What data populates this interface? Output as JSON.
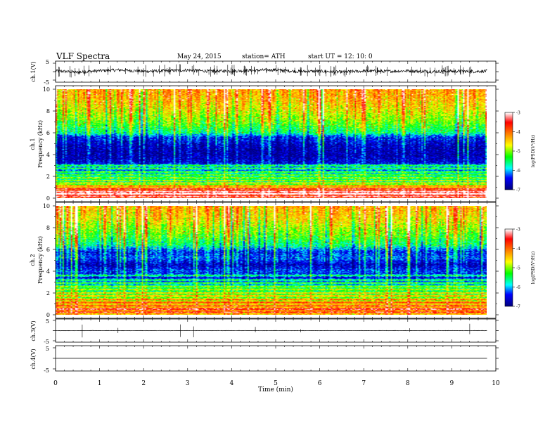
{
  "header": {
    "title": "VLF  Spectra",
    "date": "May 24, 2015",
    "station": "station= ATH",
    "start": "start  UT  =    12: 10: 0"
  },
  "chart_data": [
    {
      "id": "ch1-waveform",
      "type": "line",
      "ylabel": "ch.1(V)",
      "ytick_labels": [
        "5",
        "-5"
      ],
      "ylim": [
        -5,
        5
      ],
      "xlim": [
        0,
        10
      ],
      "data_end_min": 9.8,
      "baseline_series": {
        "x": [
          0,
          0.5,
          1,
          1.5,
          2,
          2.5,
          3,
          3.5,
          4,
          4.5,
          5,
          5.5,
          6,
          6.5,
          7,
          7.5,
          8,
          8.5,
          9,
          9.5,
          9.8
        ],
        "y": [
          0.5,
          -0.4,
          0.6,
          1.0,
          0.2,
          0.5,
          0.9,
          0.3,
          0.4,
          0.8,
          1.1,
          0.1,
          0.3,
          -0.2,
          0.4,
          0.2,
          0.5,
          0.0,
          0.3,
          0.1,
          0.4
        ]
      },
      "noise_amplitude": 0.9,
      "spike_count": 110
    },
    {
      "id": "ch1-spectrogram",
      "type": "heatmap",
      "label": "ch.1",
      "ylabel": "Frequency  (kHz)",
      "ylim": [
        0,
        10
      ],
      "ytick_labels": [
        "0",
        "2",
        "4",
        "6",
        "8",
        "10"
      ],
      "yticks": [
        0,
        2,
        4,
        6,
        8,
        10
      ],
      "xlim": [
        0,
        10
      ],
      "data_end_min": 9.8,
      "value_range": [
        -7,
        -3
      ],
      "colorbar_label": "log(PSD(V²/Hz)",
      "colorbar_ticks": [
        -3,
        -4,
        -5,
        -6,
        -7
      ],
      "colorbar_tick_labels": [
        "-3",
        "-4",
        "-5",
        "-6",
        "-7"
      ],
      "frequency_profile_khz": [
        0,
        0.5,
        0.9,
        1.3,
        1.8,
        2.3,
        2.8,
        3.3,
        4.0,
        4.8,
        5.6,
        6.0,
        7.0,
        8.0,
        9.0,
        10.0
      ],
      "frequency_profile_log_psd": [
        -4.2,
        -3.6,
        -4.6,
        -5.6,
        -5.9,
        -6.2,
        -6.3,
        -6.6,
        -6.8,
        -6.7,
        -6.4,
        -5.6,
        -5.1,
        -4.7,
        -4.4,
        -4.2
      ],
      "bright_lines_khz": [
        0.1,
        0.35,
        0.6,
        0.85,
        1.1,
        1.35,
        1.6,
        1.85,
        2.1,
        2.4,
        2.7,
        3.0
      ]
    },
    {
      "id": "ch2-spectrogram",
      "type": "heatmap",
      "label": "ch.2",
      "ylabel": "Frequency  (kHz)",
      "ylim": [
        0,
        10
      ],
      "ytick_labels": [
        "0",
        "2",
        "4",
        "6",
        "8",
        "10"
      ],
      "yticks": [
        0,
        2,
        4,
        6,
        8,
        10
      ],
      "xlim": [
        0,
        10
      ],
      "data_end_min": 9.8,
      "value_range": [
        -7,
        -3
      ],
      "colorbar_label": "log(PSD(V²/Hz)",
      "colorbar_ticks": [
        -3,
        -4,
        -5,
        -6,
        -7
      ],
      "colorbar_tick_labels": [
        "-3",
        "-4",
        "-5",
        "-6",
        "-7"
      ],
      "frequency_profile_khz": [
        0,
        0.4,
        0.8,
        1.2,
        1.6,
        2.0,
        2.4,
        2.8,
        3.4,
        4.0,
        4.6,
        5.2,
        5.8,
        6.4,
        7.2,
        8.0,
        9.0,
        10.0
      ],
      "frequency_profile_log_psd": [
        -4.4,
        -4.3,
        -4.5,
        -4.9,
        -5.3,
        -5.5,
        -5.8,
        -6.1,
        -6.6,
        -6.3,
        -6.7,
        -6.2,
        -6.4,
        -5.6,
        -5.2,
        -4.9,
        -4.5,
        -4.3
      ],
      "bright_lines_khz": [
        0.2,
        0.5,
        0.8,
        1.1,
        1.4,
        1.7,
        2.0,
        2.3,
        2.6,
        2.9,
        3.2,
        3.6
      ]
    },
    {
      "id": "ch3-waveform",
      "type": "line",
      "ylabel": "ch.3(V)",
      "ytick_labels": [
        "5",
        "-5"
      ],
      "ylim": [
        -5,
        5
      ],
      "xlim": [
        0,
        10
      ],
      "data_end_min": 9.8,
      "baseline_series": {
        "x": [
          0,
          9.8
        ],
        "y": [
          0,
          0
        ]
      },
      "noise_amplitude": 0.08,
      "spike_count": 8
    },
    {
      "id": "ch4-waveform",
      "type": "line",
      "ylabel": "ch.4(V)",
      "ytick_labels": [
        "5",
        "-5"
      ],
      "ylim": [
        -5,
        5
      ],
      "xlim": [
        0,
        10
      ],
      "data_end_min": 9.8,
      "baseline_series": {
        "x": [
          0,
          9.8
        ],
        "y": [
          0,
          0
        ]
      },
      "noise_amplitude": 0.0,
      "spike_count": 0
    }
  ],
  "time_axis": {
    "xlabel": "Time  (min)",
    "ticks": [
      0,
      1,
      2,
      3,
      4,
      5,
      6,
      7,
      8,
      9,
      10
    ],
    "tick_labels": [
      "0",
      "1",
      "2",
      "3",
      "4",
      "5",
      "6",
      "7",
      "8",
      "9",
      "10"
    ],
    "xlim": [
      0,
      10
    ]
  },
  "colors": {
    "colormap": [
      "#00007f",
      "#0000ff",
      "#00ffff",
      "#00ff00",
      "#ffff00",
      "#ff7f00",
      "#ff0000",
      "#ffffff"
    ],
    "colormap_stops": [
      -7,
      -6.4,
      -5.9,
      -5.3,
      -4.7,
      -4.1,
      -3.5,
      -3
    ]
  }
}
